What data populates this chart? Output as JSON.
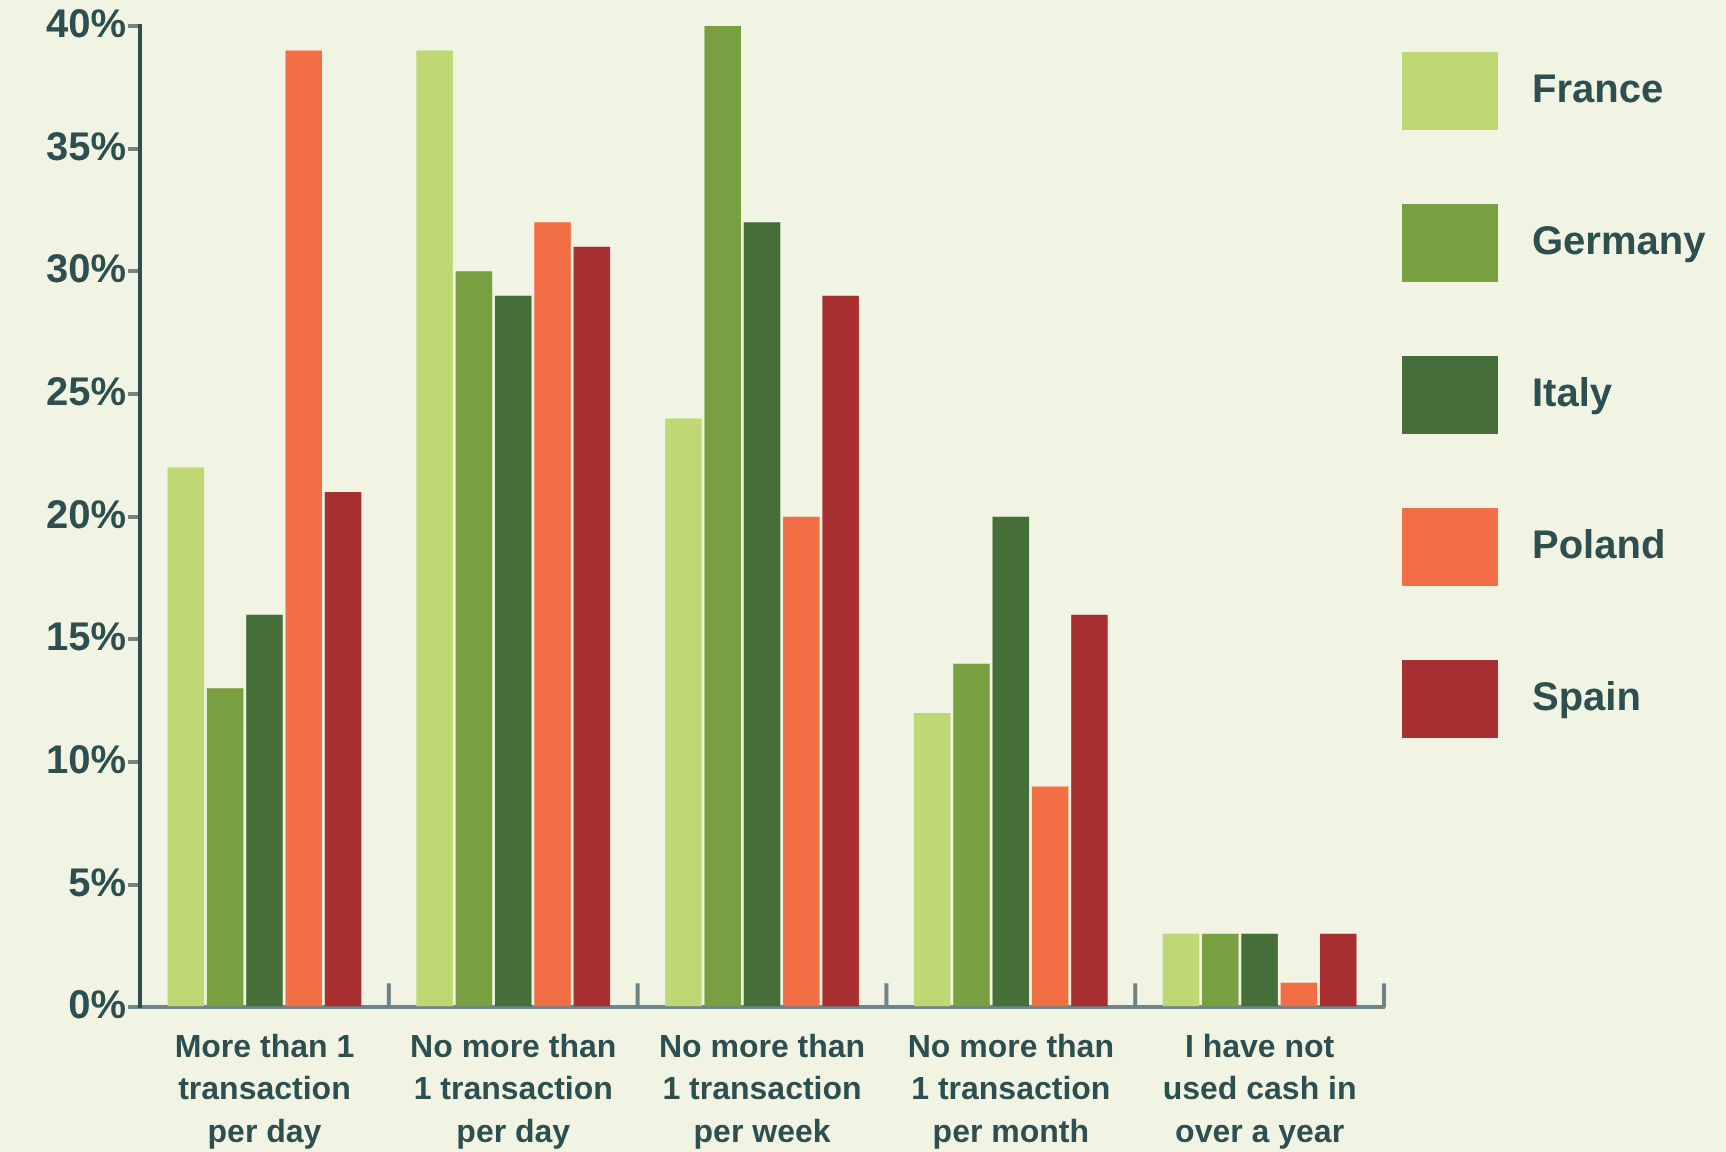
{
  "chart_data": {
    "type": "bar",
    "categories": [
      "More than 1 transaction per day",
      "No more than 1 transaction per day",
      "No more than 1 transaction per week",
      "No more than 1 transaction per month",
      "I have not used cash in over a year"
    ],
    "series": [
      {
        "name": "France",
        "color": "#bed873",
        "values": [
          22,
          39,
          24,
          12,
          3
        ]
      },
      {
        "name": "Germany",
        "color": "#78a040",
        "values": [
          13,
          30,
          40,
          14,
          3
        ]
      },
      {
        "name": "Italy",
        "color": "#466e38",
        "values": [
          16,
          29,
          32,
          20,
          3
        ]
      },
      {
        "name": "Poland",
        "color": "#f26e45",
        "values": [
          39,
          32,
          20,
          9,
          1
        ]
      },
      {
        "name": "Spain",
        "color": "#a83030",
        "values": [
          21,
          31,
          29,
          16,
          3
        ]
      }
    ],
    "ylim": [
      0,
      40
    ],
    "yticks": [
      {
        "value": 0,
        "label": "0%"
      },
      {
        "value": 5,
        "label": "5%"
      },
      {
        "value": 10,
        "label": "10%"
      },
      {
        "value": 15,
        "label": "15%"
      },
      {
        "value": 20,
        "label": "20%"
      },
      {
        "value": 25,
        "label": "25%"
      },
      {
        "value": 30,
        "label": "30%"
      },
      {
        "value": 35,
        "label": "35%"
      },
      {
        "value": 40,
        "label": "40%"
      }
    ],
    "grid": false,
    "legend": "top right"
  }
}
